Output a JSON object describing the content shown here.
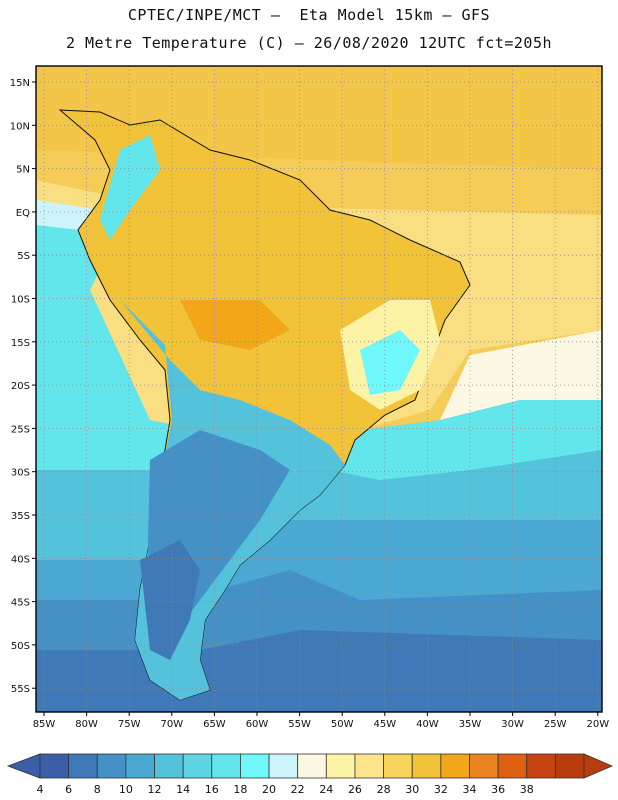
{
  "header": {
    "line1": "CPTEC/INPE/MCT –  Eta Model 15km – GFS",
    "line2": "2 Metre Temperature (C) – 26/08/2020 12UTC fct=205h"
  },
  "map": {
    "lat_labels": [
      "15N",
      "10N",
      "5N",
      "EQ",
      "5S",
      "10S",
      "15S",
      "20S",
      "25S",
      "30S",
      "35S",
      "40S",
      "45S",
      "50S",
      "55S"
    ],
    "lon_labels": [
      "85W",
      "80W",
      "75W",
      "70W",
      "65W",
      "60W",
      "55W",
      "50W",
      "45W",
      "40W",
      "35W",
      "30W",
      "25W",
      "20W"
    ]
  },
  "colorbar": {
    "labels": [
      "4",
      "6",
      "8",
      "10",
      "12",
      "14",
      "16",
      "18",
      "20",
      "22",
      "24",
      "26",
      "28",
      "30",
      "32",
      "34",
      "36",
      "38"
    ],
    "colors": [
      "#3a5fa8",
      "#3f79b8",
      "#4591c6",
      "#4aa8d2",
      "#55c2dc",
      "#5dd5e4",
      "#62e6ec",
      "#6ff8fb",
      "#cdf3fb",
      "#fdf8e3",
      "#fdf3a6",
      "#fde48c",
      "#f8d45a",
      "#f2c338",
      "#f1a718",
      "#ea8420",
      "#de6010",
      "#c74311",
      "#b83c0e"
    ],
    "left_arrow_color": "#3a5fa8",
    "right_arrow_color": "#b83c0e"
  }
}
